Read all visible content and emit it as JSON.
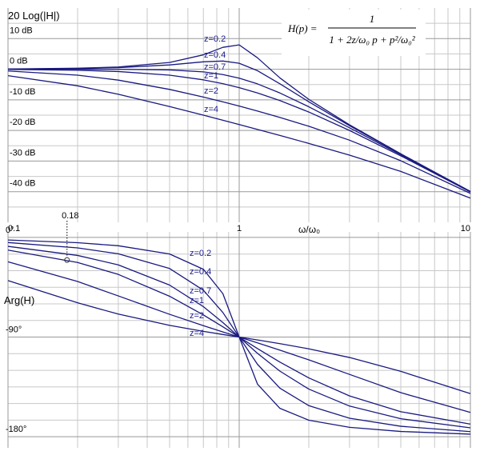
{
  "chart_data": [
    {
      "type": "line",
      "title": "20 Log(|H|)",
      "xlabel": "ω/ω₀",
      "formula": {
        "lhs": "H(p) =",
        "numerator": "1",
        "denominator": "1 + 2z/ω₀ p + p²/ω₀²"
      },
      "xlog": true,
      "xlim": [
        0.1,
        10
      ],
      "xticks": [
        0.1,
        1,
        10
      ],
      "xgrid": [
        0.2,
        0.3,
        0.4,
        0.5,
        0.6,
        0.7,
        0.8,
        0.9,
        2,
        3,
        4,
        5,
        6,
        7,
        8,
        9
      ],
      "ylim": [
        -50,
        20
      ],
      "yticks": [
        {
          "value": 10,
          "label": "10 dB"
        },
        {
          "value": 0,
          "label": "0 dB"
        },
        {
          "value": -10,
          "label": "-10 dB"
        },
        {
          "value": -20,
          "label": "-20 dB"
        },
        {
          "value": -30,
          "label": "-30 dB"
        },
        {
          "value": -40,
          "label": "-40 dB"
        }
      ],
      "ygrid": [
        -45,
        -35,
        -25,
        -15,
        -5,
        5,
        15
      ],
      "x": [
        0.1,
        0.2,
        0.3,
        0.5,
        0.7,
        0.85,
        1,
        1.2,
        1.5,
        2,
        3,
        5,
        10
      ],
      "series": [
        {
          "name": "z=0.2",
          "color": "#1a1a80",
          "values": [
            0.08,
            0.325,
            0.744,
            2.2,
            4.704,
            7.153,
            7.959,
            3.726,
            -2.839,
            -9.841,
            -18.158,
            -27.634,
            -39.92
          ]
        },
        {
          "name": "z=0.4",
          "color": "#1a1a80",
          "values": [
            0.059,
            0.236,
            0.527,
            1.412,
            2.413,
            2.681,
            1.938,
            -0.474,
            -4.775,
            -10.63,
            -18.436,
            -27.723,
            -39.941
          ]
        },
        {
          "name": "z=0.7",
          "color": "#1a1a80",
          "values": [
            0.001,
            0.0,
            -0.02,
            -0.222,
            -0.865,
            -1.741,
            -2.923,
            -4.794,
            -7.761,
            -12.263,
            -19.119,
            -27.959,
            -39.999
          ]
        },
        {
          "name": "z=1",
          "color": "#1a1a80",
          "values": [
            -0.086,
            -0.341,
            -0.749,
            -1.938,
            -3.464,
            -4.723,
            -6.021,
            -7.748,
            -10.238,
            -13.979,
            -20,
            -28.299,
            -40.086
          ]
        },
        {
          "name": "z=2",
          "color": "#1a1a80",
          "values": [
            -0.569,
            -1.936,
            -3.557,
            -6.592,
            -9.085,
            -10.658,
            -12.041,
            -13.661,
            -15.748,
            -18.633,
            -23.181,
            -29.895,
            -40.569
          ]
        },
        {
          "name": "z=4",
          "color": "#1a1a80",
          "values": [
            -2.095,
            -5.418,
            -8.188,
            -12.191,
            -14.998,
            -16.657,
            -18.062,
            -19.655,
            -21.63,
            -24.233,
            -28.062,
            -33.377,
            -42.095
          ]
        }
      ]
    },
    {
      "type": "line",
      "title": "Arg(H)",
      "annotation": {
        "x": 0.18,
        "y": -20.4,
        "label": "0.18"
      },
      "xlog": true,
      "xlim": [
        0.1,
        10
      ],
      "xticks": [
        0.1,
        1,
        10
      ],
      "xgrid": [
        0.2,
        0.3,
        0.4,
        0.5,
        0.6,
        0.7,
        0.8,
        0.9,
        2,
        3,
        4,
        5,
        6,
        7,
        8,
        9
      ],
      "ylim": [
        -190,
        5
      ],
      "yticks": [
        {
          "value": 0,
          "label": "0°"
        },
        {
          "value": -90,
          "label": "-90°"
        },
        {
          "value": -180,
          "label": "-180°"
        }
      ],
      "ygrid": [
        -165,
        -150,
        -135,
        -120,
        -105,
        -75,
        -60,
        -45,
        -30,
        -15
      ],
      "x": [
        0.1,
        0.2,
        0.3,
        0.5,
        0.7,
        0.85,
        1,
        1.2,
        1.5,
        2,
        3,
        5,
        10
      ],
      "series": [
        {
          "name": "z=0.2",
          "color": "#1a1a80",
          "values": [
            -2.31,
            -4.76,
            -7.51,
            -14.93,
            -28.77,
            -50.78,
            -90,
            -132.51,
            -154.36,
            -165.07,
            -171.47,
            -175.24,
            -177.69
          ]
        },
        {
          "name": "z=0.4",
          "color": "#1a1a80",
          "values": [
            -4.62,
            -9.46,
            -14.77,
            -28.07,
            -47.68,
            -67.8,
            -90,
            -114.62,
            -136.17,
            -151.93,
            -163.3,
            -170.54,
            -175.38
          ]
        },
        {
          "name": "z=0.7",
          "color": "#1a1a80",
          "values": [
            -8.05,
            -16.26,
            -24.78,
            -43.03,
            -62.5,
            -76.87,
            -90,
            -104.68,
            -120.76,
            -136.97,
            -152.3,
            -163.74,
            -171.95
          ]
        },
        {
          "name": "z=1",
          "color": "#1a1a80",
          "values": [
            -11.42,
            -22.62,
            -33.4,
            -53.13,
            -69.98,
            -80.72,
            -90,
            -100.39,
            -112.62,
            -126.87,
            -143.13,
            -157.38,
            -168.58
          ]
        },
        {
          "name": "z=2",
          "color": "#1a1a80",
          "values": [
            -22.0,
            -39.81,
            -52.83,
            -69.44,
            -79.68,
            -85.33,
            -90,
            -95.24,
            -101.77,
            -110.56,
            -123.69,
            -140.19,
            -158.0
          ]
        },
        {
          "name": "z=4",
          "color": "#1a1a80",
          "values": [
            -38.94,
            -59.04,
            -69.24,
            -79.38,
            -84.8,
            -87.66,
            -90,
            -92.62,
            -95.95,
            -100.62,
            -108.43,
            -120.96,
            -141.06
          ]
        }
      ]
    }
  ]
}
